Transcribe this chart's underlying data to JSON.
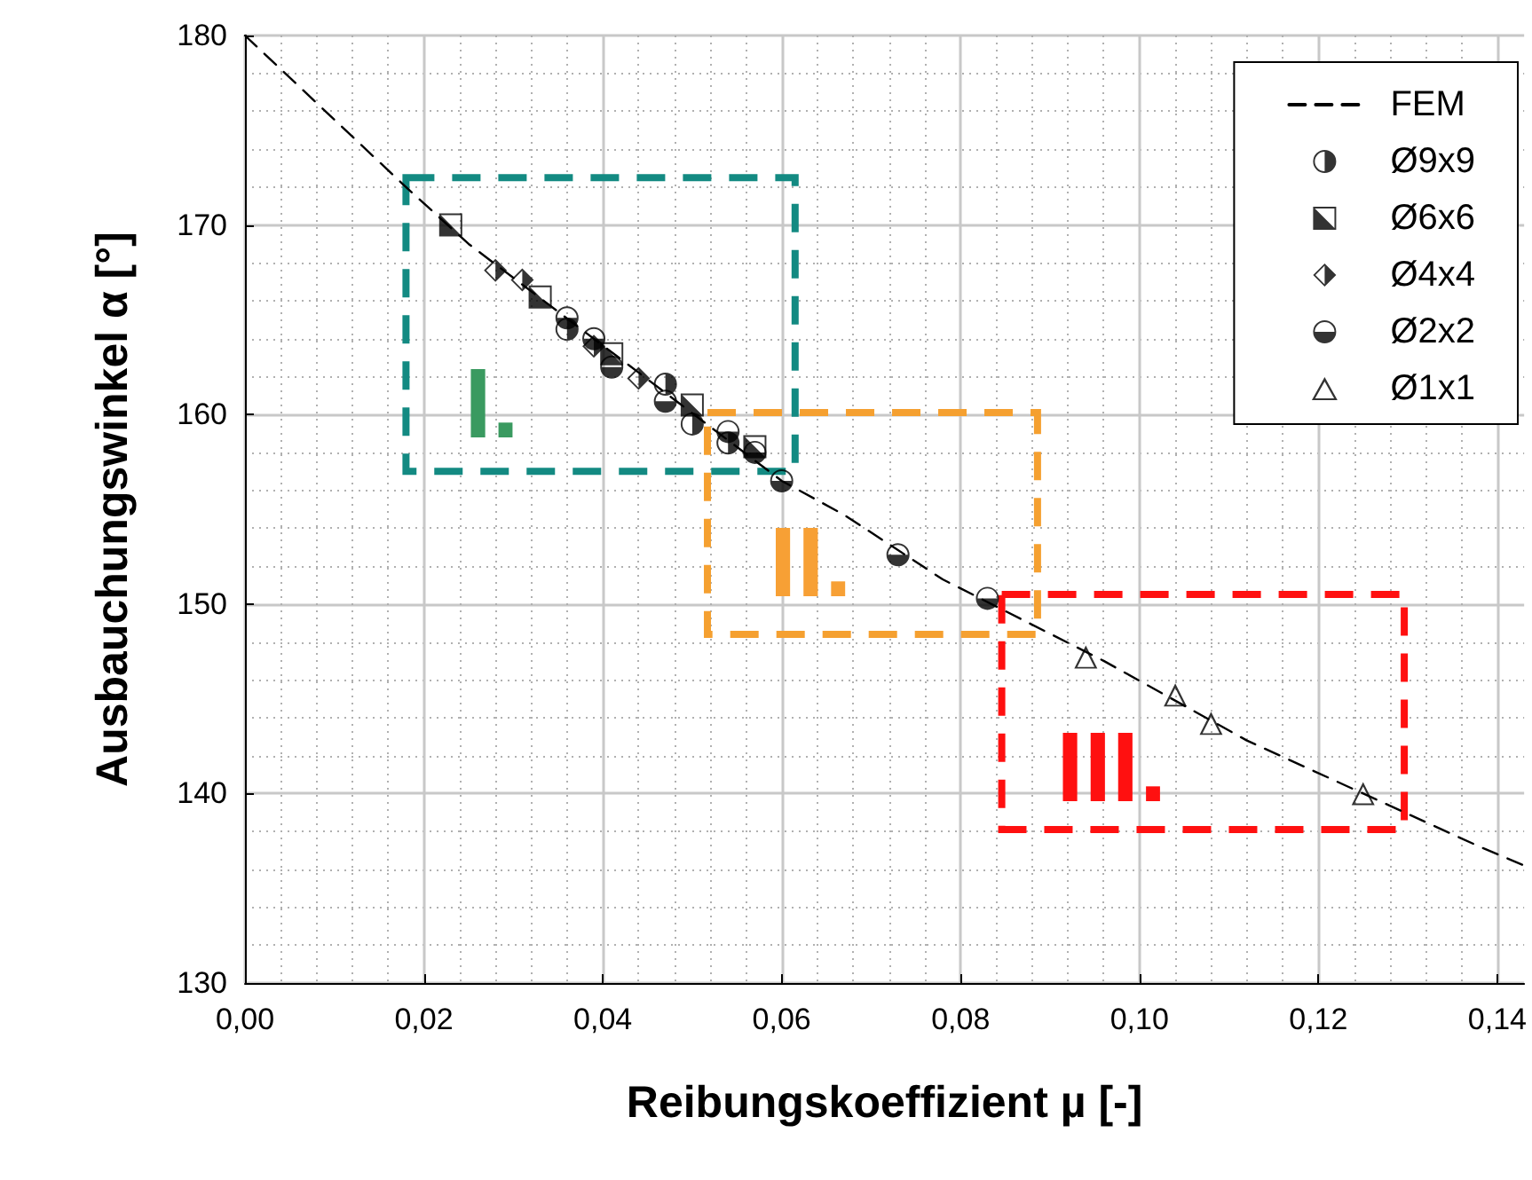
{
  "chart_data": {
    "type": "scatter",
    "xlabel": "Reibungskoeffizient µ [-]",
    "ylabel": "Ausbauchungswinkel α [°]",
    "xlim": [
      0,
      0.143
    ],
    "xticks": [
      {
        "value": 0,
        "label": "0,00"
      },
      {
        "value": 0.02,
        "label": "0,02"
      },
      {
        "value": 0.04,
        "label": "0,04"
      },
      {
        "value": 0.06,
        "label": "0,06"
      },
      {
        "value": 0.08,
        "label": "0,08"
      },
      {
        "value": 0.1,
        "label": "0,10"
      },
      {
        "value": 0.12,
        "label": "0,12"
      },
      {
        "value": 0.14,
        "label": "0,14"
      }
    ],
    "ylim": [
      130,
      180
    ],
    "yticks": [
      130,
      140,
      150,
      160,
      170,
      180
    ],
    "grid": true,
    "legend": "top right",
    "series": [
      {
        "name": "FEM",
        "type": "line",
        "color": "#000000",
        "marker": "none",
        "line_style": "dashed",
        "x": [
          0,
          0.018,
          0.025,
          0.06,
          0.067,
          0.078,
          0.096,
          0.112,
          0.138,
          0.143
        ],
        "values": [
          180,
          172.0,
          169.0,
          156.5,
          154.7,
          151.3,
          147.0,
          142.8,
          137.2,
          136.2
        ]
      },
      {
        "name": "Ø9x9",
        "color": "#000000",
        "marker": "circle",
        "x": [
          0.036,
          0.047,
          0.05,
          0.054
        ],
        "values": [
          164.5,
          161.6,
          159.5,
          158.5
        ]
      },
      {
        "name": "Ø6x6",
        "color": "#000000",
        "marker": "square",
        "x": [
          0.023,
          0.033,
          0.041,
          0.05,
          0.057
        ],
        "values": [
          170.0,
          166.2,
          163.2,
          160.5,
          158.3
        ]
      },
      {
        "name": "Ø4x4",
        "color": "#000000",
        "marker": "diamond",
        "x": [
          0.028,
          0.031,
          0.039,
          0.044
        ],
        "values": [
          167.6,
          167.1,
          163.6,
          161.9
        ]
      },
      {
        "name": "Ø2x2",
        "color": "#000000",
        "marker": "circle",
        "x": [
          0.036,
          0.039,
          0.041,
          0.047,
          0.054,
          0.057,
          0.06,
          0.073,
          0.083
        ],
        "values": [
          165.1,
          164.0,
          162.5,
          160.7,
          159.1,
          158.0,
          156.5,
          152.6,
          150.3
        ]
      },
      {
        "name": "Ø1x1",
        "color": "#000000",
        "marker": "triangle",
        "x": [
          0.094,
          0.104,
          0.108,
          0.125
        ],
        "values": [
          147.2,
          145.2,
          143.7,
          140.0
        ]
      }
    ],
    "annotations": [
      "I.",
      "II.",
      "III."
    ]
  }
}
